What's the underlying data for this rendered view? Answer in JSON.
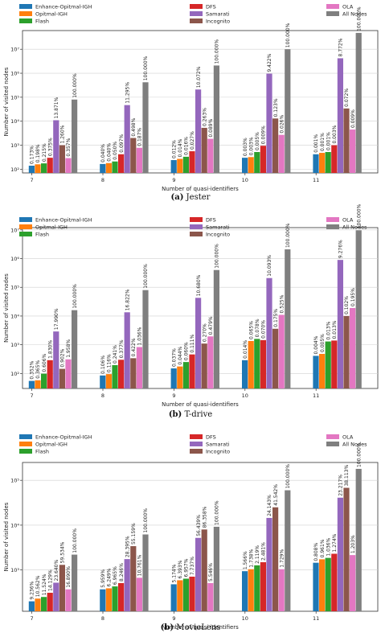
{
  "colors": {
    "Enhance-Opitmal-IGH": "#1f77b4",
    "Opitmal-IGH": "#ff7f0e",
    "Flash": "#2ca02c",
    "DFS": "#d62728",
    "Samarati": "#9467bd",
    "Incognito": "#8c564b",
    "OLA": "#e377c2",
    "All Nodes": "#7f7f7f"
  },
  "chart_data": [
    {
      "type": "bar",
      "caption_letter": "(a)",
      "caption_text": "Jester",
      "xlabel": "Number of quasi-identifiers",
      "ylabel": "Number of visited nodes",
      "yscale": "log",
      "ylim": [
        70,
        60000000
      ],
      "yticks": [
        {
          "v": 100,
          "label": "10²"
        },
        {
          "v": 1000,
          "label": "10³"
        },
        {
          "v": 10000,
          "label": "10⁴"
        },
        {
          "v": 100000,
          "label": "10⁵"
        },
        {
          "v": 1000000,
          "label": "10⁶"
        },
        {
          "v": 10000000,
          "label": "10⁷"
        }
      ],
      "categories": [
        "7",
        "8",
        "9",
        "10",
        "11"
      ],
      "legend": "top",
      "series": [
        {
          "name": "Enhance-Opitmal-IGH",
          "values": [
            140,
            165,
            240,
            300,
            420
          ],
          "labels": [
            "0.173%",
            "0.040%",
            "0.012%",
            "0.003%",
            "0.001%"
          ]
        },
        {
          "name": "Opitmal-IGH",
          "values": [
            160,
            180,
            270,
            320,
            480
          ],
          "labels": [
            "0.198%",
            "0.040%",
            "0.014%",
            "0.003%",
            "0.001%"
          ]
        },
        {
          "name": "Flash",
          "values": [
            175,
            210,
            330,
            520,
            520
          ],
          "labels": [
            "0.215%",
            "0.050%",
            "0.016%",
            "0.005%",
            "0.001%"
          ]
        },
        {
          "name": "DFS",
          "values": [
            300,
            420,
            560,
            950,
            1000
          ],
          "labels": [
            "0.375%",
            "0.097%",
            "0.027%",
            "0.009%",
            "0.003%"
          ]
        },
        {
          "name": "Samarati",
          "values": [
            11000,
            47000,
            210000,
            960000,
            4200000
          ],
          "labels": [
            "13.871%",
            "11.295%",
            "10.072%",
            "9.422%",
            "8.772%"
          ]
        },
        {
          "name": "Incognito",
          "values": [
            1000,
            2000,
            5300,
            13000,
            34000
          ],
          "labels": [
            "1.260%",
            "0.498%",
            "0.263%",
            "0.123%",
            "0.072%"
          ]
        },
        {
          "name": "OLA",
          "values": [
            290,
            780,
            1850,
            2700,
            4500
          ],
          "labels": [
            "0.357%",
            "0.187%",
            "0.089%",
            "0.026%",
            "0.009%"
          ]
        },
        {
          "name": "All Nodes",
          "values": [
            80000,
            420000,
            2100000,
            10000000,
            48000000
          ],
          "labels": [
            "100.000%",
            "100.000%",
            "100.000%",
            "100.000%",
            "100.000%"
          ]
        }
      ]
    },
    {
      "type": "bar",
      "caption_letter": "(b)",
      "caption_text": "T-drive",
      "xlabel": "Number of quasi-identifiers",
      "ylabel": "Number of visited nodes",
      "yscale": "log",
      "ylim": [
        30,
        12000000
      ],
      "yticks": [
        {
          "v": 100,
          "label": "10²"
        },
        {
          "v": 1000,
          "label": "10³"
        },
        {
          "v": 10000,
          "label": "10⁴"
        },
        {
          "v": 100000,
          "label": "10⁵"
        },
        {
          "v": 1000000,
          "label": "10⁶"
        },
        {
          "v": 10000000,
          "label": "10⁷"
        }
      ],
      "categories": [
        "7",
        "8",
        "9",
        "10",
        "11"
      ],
      "legend": "top",
      "series": [
        {
          "name": "Enhance-Opitmal-IGH",
          "values": [
            55,
            85,
            150,
            290,
            410
          ],
          "labels": [
            "0.352%",
            "0.106%",
            "0.037%",
            "0.014%",
            "0.004%"
          ]
        },
        {
          "name": "Opitmal-IGH",
          "values": [
            58,
            95,
            175,
            1350,
            480
          ],
          "labels": [
            "0.365%",
            "0.116%",
            "0.044%",
            "0.065%",
            "0.005%"
          ]
        },
        {
          "name": "Flash",
          "values": [
            98,
            195,
            250,
            1600,
            1300
          ],
          "labels": [
            "0.606%",
            "0.241%",
            "0.060%",
            "0.078%",
            "0.013%"
          ]
        },
        {
          "name": "DFS",
          "values": [
            290,
            300,
            460,
            1450,
            1400
          ],
          "labels": [
            "1.830%",
            "0.377%",
            "0.111%",
            "0.070%",
            "0.013%"
          ]
        },
        {
          "name": "Samarati",
          "values": [
            2900,
            13500,
            43000,
            210000,
            900000
          ],
          "labels": [
            "17.990%",
            "16.822%",
            "10.680%",
            "10.093%",
            "9.276%"
          ]
        },
        {
          "name": "Incognito",
          "values": [
            145,
            340,
            1100,
            3600,
            10000
          ],
          "labels": [
            "0.902%",
            "0.422%",
            "0.270%",
            "0.175%",
            "0.102%"
          ]
        },
        {
          "name": "OLA",
          "values": [
            310,
            830,
            1950,
            11000,
            19000
          ],
          "labels": [
            "1.958%",
            "1.036%",
            "0.479%",
            "0.525%",
            "0.195%"
          ]
        },
        {
          "name": "All Nodes",
          "values": [
            16000,
            80000,
            400000,
            2100000,
            9700000
          ],
          "labels": [
            "100.000%",
            "100.000%",
            "100.000%",
            "100.000%",
            "100.000%"
          ]
        }
      ]
    },
    {
      "type": "bar",
      "caption_letter": "(b)",
      "caption_text": "MovieLens",
      "xlabel": "Number of quasi-identifiers",
      "ylabel": "Number of visited nodes",
      "yscale": "log",
      "ylim": [
        120,
        250000
      ],
      "yticks": [
        {
          "v": 1000,
          "label": "10³"
        },
        {
          "v": 10000,
          "label": "10⁴"
        },
        {
          "v": 100000,
          "label": "10⁵"
        }
      ],
      "categories": [
        "7",
        "8",
        "9",
        "10",
        "11"
      ],
      "legend": "top",
      "series": [
        {
          "name": "Enhance-Opitmal-IGH",
          "values": [
            200,
            370,
            480,
            940,
            1450
          ],
          "labels": [
            "9.236%",
            "5.959%",
            "5.174%",
            "1.566%",
            "0.808%"
          ]
        },
        {
          "name": "Opitmal-IGH",
          "values": [
            230,
            390,
            590,
            1040,
            1730
          ],
          "labels": [
            "10.562%",
            "6.249%",
            "6.393%",
            "1.738%",
            "0.961%"
          ]
        },
        {
          "name": "Flash",
          "values": [
            250,
            430,
            640,
            1270,
            1860
          ],
          "labels": [
            "11.524%",
            "6.965%",
            "6.957%",
            "2.119%",
            "1.036%"
          ]
        },
        {
          "name": "DFS",
          "values": [
            310,
            510,
            710,
            1490,
            2300
          ],
          "labels": [
            "14.129%",
            "8.246%",
            "7.737%",
            "2.481%",
            "1.274%"
          ]
        },
        {
          "name": "Samarati",
          "values": [
            520,
            1750,
            5200,
            14500,
            41000
          ],
          "labels": [
            "23.640%",
            "28.395%",
            "56.439%",
            "24.143%",
            "23.217%"
          ]
        },
        {
          "name": "Incognito",
          "values": [
            1300,
            3400,
            8000,
            25000,
            68000
          ],
          "labels": [
            "59.534%",
            "55.159%",
            "86.358%",
            "41.542%",
            "38.113%"
          ]
        },
        {
          "name": "OLA",
          "values": [
            370,
            670,
            510,
            1040,
            2150
          ],
          "labels": [
            "16.890%",
            "10.761%",
            "5.546%",
            "1.729%",
            "1.203%"
          ]
        },
        {
          "name": "All Nodes",
          "values": [
            2200,
            6200,
            9200,
            60000,
            180000
          ],
          "labels": [
            "100.000%",
            "100.000%",
            "100.000%",
            "100.000%",
            "100.000%"
          ]
        }
      ]
    }
  ]
}
